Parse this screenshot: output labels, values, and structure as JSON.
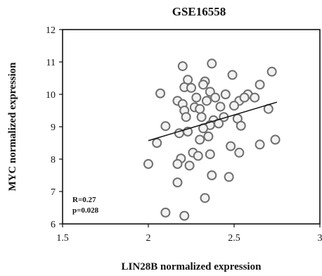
{
  "chart_data": {
    "type": "scatter",
    "title": "GSE16558",
    "xlabel": "LIN28B normalized expression",
    "ylabel": "MYC normalized expression",
    "xlim": [
      1.5,
      3
    ],
    "ylim": [
      6,
      12
    ],
    "x_ticks": [
      "1.5",
      "2",
      "2.5",
      "3"
    ],
    "y_ticks": [
      "6",
      "7",
      "8",
      "9",
      "10",
      "11",
      "12"
    ],
    "grid": false,
    "annotations": [
      "R=0.27",
      "p=0.028"
    ],
    "trendline": {
      "x": [
        2.0,
        2.75
      ],
      "y": [
        8.57,
        9.76
      ]
    },
    "points": [
      {
        "x": 2.2,
        "y": 10.87
      },
      {
        "x": 2.37,
        "y": 10.95
      },
      {
        "x": 2.23,
        "y": 10.45
      },
      {
        "x": 2.33,
        "y": 10.4
      },
      {
        "x": 2.49,
        "y": 10.6
      },
      {
        "x": 2.72,
        "y": 10.7
      },
      {
        "x": 2.07,
        "y": 10.03
      },
      {
        "x": 2.21,
        "y": 10.22
      },
      {
        "x": 2.25,
        "y": 10.2
      },
      {
        "x": 2.32,
        "y": 10.3
      },
      {
        "x": 2.36,
        "y": 10.08
      },
      {
        "x": 2.45,
        "y": 10.0
      },
      {
        "x": 2.58,
        "y": 10.0
      },
      {
        "x": 2.65,
        "y": 10.3
      },
      {
        "x": 2.62,
        "y": 9.9
      },
      {
        "x": 2.17,
        "y": 9.8
      },
      {
        "x": 2.2,
        "y": 9.7
      },
      {
        "x": 2.28,
        "y": 9.9
      },
      {
        "x": 2.34,
        "y": 9.8
      },
      {
        "x": 2.39,
        "y": 9.9
      },
      {
        "x": 2.53,
        "y": 9.8
      },
      {
        "x": 2.56,
        "y": 9.9
      },
      {
        "x": 2.21,
        "y": 9.5
      },
      {
        "x": 2.27,
        "y": 9.6
      },
      {
        "x": 2.3,
        "y": 9.55
      },
      {
        "x": 2.42,
        "y": 9.62
      },
      {
        "x": 2.5,
        "y": 9.65
      },
      {
        "x": 2.7,
        "y": 9.55
      },
      {
        "x": 2.22,
        "y": 9.3
      },
      {
        "x": 2.31,
        "y": 9.3
      },
      {
        "x": 2.38,
        "y": 9.2
      },
      {
        "x": 2.44,
        "y": 9.3
      },
      {
        "x": 2.52,
        "y": 9.25
      },
      {
        "x": 2.36,
        "y": 9.05
      },
      {
        "x": 2.41,
        "y": 9.1
      },
      {
        "x": 2.54,
        "y": 9.03
      },
      {
        "x": 2.1,
        "y": 9.02
      },
      {
        "x": 2.32,
        "y": 8.95
      },
      {
        "x": 2.18,
        "y": 8.8
      },
      {
        "x": 2.23,
        "y": 8.85
      },
      {
        "x": 2.35,
        "y": 8.7
      },
      {
        "x": 2.05,
        "y": 8.5
      },
      {
        "x": 2.3,
        "y": 8.6
      },
      {
        "x": 2.48,
        "y": 8.4
      },
      {
        "x": 2.65,
        "y": 8.45
      },
      {
        "x": 2.74,
        "y": 8.6
      },
      {
        "x": 2.26,
        "y": 8.2
      },
      {
        "x": 2.29,
        "y": 8.1
      },
      {
        "x": 2.19,
        "y": 8.02
      },
      {
        "x": 2.36,
        "y": 8.15
      },
      {
        "x": 2.53,
        "y": 8.2
      },
      {
        "x": 2.0,
        "y": 7.85
      },
      {
        "x": 2.17,
        "y": 7.85
      },
      {
        "x": 2.24,
        "y": 7.8
      },
      {
        "x": 2.37,
        "y": 7.5
      },
      {
        "x": 2.47,
        "y": 7.45
      },
      {
        "x": 2.17,
        "y": 7.28
      },
      {
        "x": 2.33,
        "y": 6.8
      },
      {
        "x": 2.1,
        "y": 6.35
      },
      {
        "x": 2.21,
        "y": 6.25
      }
    ]
  }
}
